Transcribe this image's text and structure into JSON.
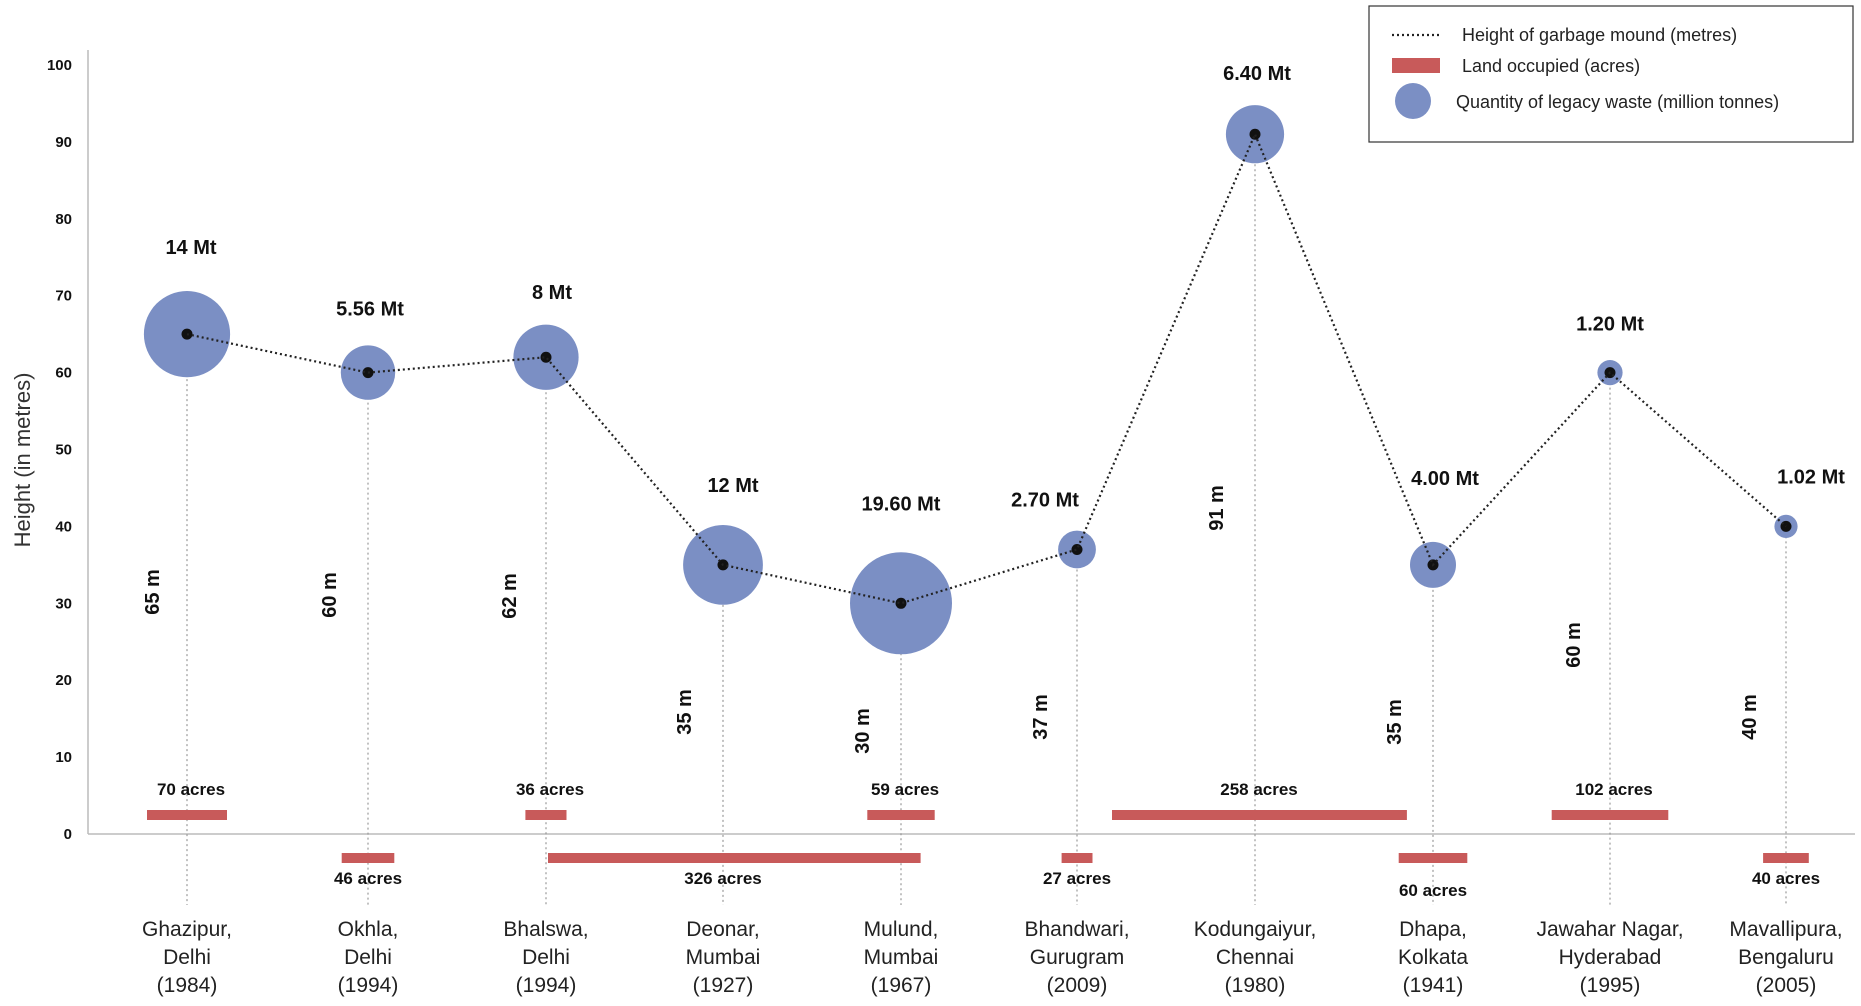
{
  "chart_data": {
    "type": "scatter",
    "ylabel": "Height (in metres)",
    "ylim": [
      0,
      100
    ],
    "yticks": [
      0,
      10,
      20,
      30,
      40,
      50,
      60,
      70,
      80,
      90,
      100
    ],
    "legend": {
      "placement": "top-right",
      "entries": [
        "Height of garbage mound (metres)",
        "Land occupied (acres)",
        "Quantity of legacy waste (million tonnes)"
      ]
    },
    "colors": {
      "bubble": "#7b8fc4",
      "bar": "#c85a5a",
      "line": "#222222",
      "drop": "#999999"
    },
    "categories": [
      {
        "name": "Ghazipur,",
        "place": "Delhi",
        "year": "(1984)",
        "height": 65,
        "height_label": "65 m",
        "acres": 70,
        "acres_label": "70 acres",
        "waste": 14,
        "waste_label": "14 Mt"
      },
      {
        "name": "Okhla,",
        "place": "Delhi",
        "year": "(1994)",
        "height": 60,
        "height_label": "60 m",
        "acres": 46,
        "acres_label": "46 acres",
        "waste": 5.56,
        "waste_label": "5.56 Mt"
      },
      {
        "name": "Bhalswa,",
        "place": "Delhi",
        "year": "(1994)",
        "height": 62,
        "height_label": "62 m",
        "acres": 36,
        "acres_label": "36 acres",
        "waste": 8,
        "waste_label": "8 Mt"
      },
      {
        "name": "Deonar,",
        "place": "Mumbai",
        "year": "(1927)",
        "height": 35,
        "height_label": "35 m",
        "acres": 326,
        "acres_label": "326 acres",
        "waste": 12,
        "waste_label": "12 Mt"
      },
      {
        "name": "Mulund,",
        "place": "Mumbai",
        "year": "(1967)",
        "height": 30,
        "height_label": "30 m",
        "acres": 59,
        "acres_label": "59 acres",
        "waste": 19.6,
        "waste_label": "19.60 Mt"
      },
      {
        "name": "Bhandwari,",
        "place": "Gurugram",
        "year": "(2009)",
        "height": 37,
        "height_label": "37 m",
        "acres": 27,
        "acres_label": "27 acres",
        "waste": 2.7,
        "waste_label": "2.70 Mt"
      },
      {
        "name": "Kodungaiyur,",
        "place": "Chennai",
        "year": "(1980)",
        "height": 91,
        "height_label": "91 m",
        "acres": 258,
        "acres_label": "258 acres",
        "waste": 6.4,
        "waste_label": "6.40 Mt"
      },
      {
        "name": "Dhapa,",
        "place": "Kolkata",
        "year": "(1941)",
        "height": 35,
        "height_label": "35 m",
        "acres": 60,
        "acres_label": "60 acres",
        "waste": 4.0,
        "waste_label": "4.00 Mt"
      },
      {
        "name": "Jawahar Nagar,",
        "place": "Hyderabad",
        "year": "(1995)",
        "height": 60,
        "height_label": "60 m",
        "acres": 102,
        "acres_label": "102 acres",
        "waste": 1.2,
        "waste_label": "1.20 Mt"
      },
      {
        "name": "Mavallipura,",
        "place": "Bengaluru",
        "year": "(2005)",
        "height": 40,
        "height_label": "40 m",
        "acres": 40,
        "acres_label": "40 acres",
        "waste": 1.02,
        "waste_label": "1.02 Mt"
      }
    ]
  }
}
